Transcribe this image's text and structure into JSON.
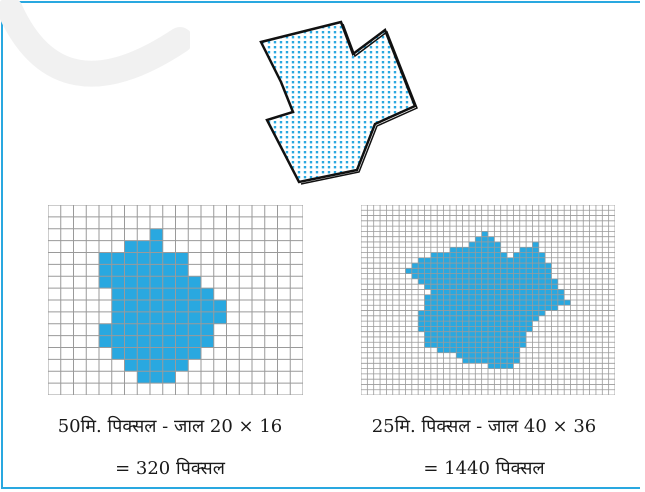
{
  "figure": {
    "vector_polygon": {
      "label": ""
    },
    "left_raster": {
      "caption_line1": "50मि. पिक्सल - जाल 20 × 16",
      "caption_line2": "= 320 पिक्सल",
      "cols": 20,
      "rows": 16,
      "grid_color": "#9a9a9a",
      "fill_color": "#29a8e0",
      "cells": [
        [
          8,
          2
        ],
        [
          6,
          3
        ],
        [
          7,
          3
        ],
        [
          8,
          3
        ],
        [
          4,
          4
        ],
        [
          5,
          4
        ],
        [
          6,
          4
        ],
        [
          7,
          4
        ],
        [
          8,
          4
        ],
        [
          9,
          4
        ],
        [
          10,
          4
        ],
        [
          4,
          5
        ],
        [
          5,
          5
        ],
        [
          6,
          5
        ],
        [
          7,
          5
        ],
        [
          8,
          5
        ],
        [
          9,
          5
        ],
        [
          10,
          5
        ],
        [
          4,
          6
        ],
        [
          5,
          6
        ],
        [
          6,
          6
        ],
        [
          7,
          6
        ],
        [
          8,
          6
        ],
        [
          9,
          6
        ],
        [
          10,
          6
        ],
        [
          11,
          6
        ],
        [
          5,
          7
        ],
        [
          6,
          7
        ],
        [
          7,
          7
        ],
        [
          8,
          7
        ],
        [
          9,
          7
        ],
        [
          10,
          7
        ],
        [
          11,
          7
        ],
        [
          12,
          7
        ],
        [
          5,
          8
        ],
        [
          6,
          8
        ],
        [
          7,
          8
        ],
        [
          8,
          8
        ],
        [
          9,
          8
        ],
        [
          10,
          8
        ],
        [
          11,
          8
        ],
        [
          12,
          8
        ],
        [
          13,
          8
        ],
        [
          5,
          9
        ],
        [
          6,
          9
        ],
        [
          7,
          9
        ],
        [
          8,
          9
        ],
        [
          9,
          9
        ],
        [
          10,
          9
        ],
        [
          11,
          9
        ],
        [
          12,
          9
        ],
        [
          13,
          9
        ],
        [
          4,
          10
        ],
        [
          5,
          10
        ],
        [
          6,
          10
        ],
        [
          7,
          10
        ],
        [
          8,
          10
        ],
        [
          9,
          10
        ],
        [
          10,
          10
        ],
        [
          11,
          10
        ],
        [
          12,
          10
        ],
        [
          4,
          11
        ],
        [
          5,
          11
        ],
        [
          6,
          11
        ],
        [
          7,
          11
        ],
        [
          8,
          11
        ],
        [
          9,
          11
        ],
        [
          10,
          11
        ],
        [
          11,
          11
        ],
        [
          12,
          11
        ],
        [
          5,
          12
        ],
        [
          6,
          12
        ],
        [
          7,
          12
        ],
        [
          8,
          12
        ],
        [
          9,
          12
        ],
        [
          10,
          12
        ],
        [
          11,
          12
        ],
        [
          6,
          13
        ],
        [
          7,
          13
        ],
        [
          8,
          13
        ],
        [
          9,
          13
        ],
        [
          10,
          13
        ],
        [
          7,
          14
        ],
        [
          8,
          14
        ],
        [
          9,
          14
        ]
      ]
    },
    "right_raster": {
      "caption_line1": "25मि. पिक्सल - जाल 40 × 36",
      "caption_line2": "= 1440 पिक्सल",
      "cols": 40,
      "rows": 36,
      "grid_color": "#9a9a9a",
      "fill_color": "#29a8e0"
    },
    "colors": {
      "border": "#29a8e0",
      "dots": "#29a8e0",
      "outline": "#111111"
    }
  }
}
